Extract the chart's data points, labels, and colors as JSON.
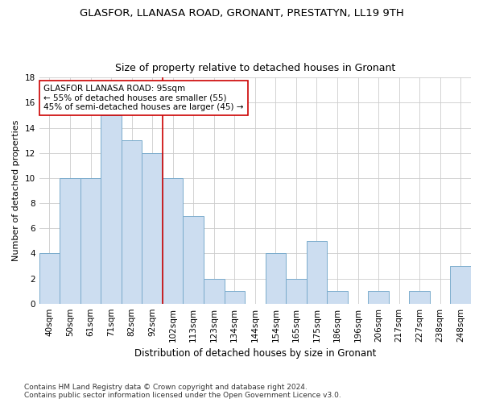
{
  "title": "GLASFOR, LLANASA ROAD, GRONANT, PRESTATYN, LL19 9TH",
  "subtitle": "Size of property relative to detached houses in Gronant",
  "xlabel": "Distribution of detached houses by size in Gronant",
  "ylabel": "Number of detached properties",
  "categories": [
    "40sqm",
    "50sqm",
    "61sqm",
    "71sqm",
    "82sqm",
    "92sqm",
    "102sqm",
    "113sqm",
    "123sqm",
    "134sqm",
    "144sqm",
    "154sqm",
    "165sqm",
    "175sqm",
    "186sqm",
    "196sqm",
    "206sqm",
    "217sqm",
    "227sqm",
    "238sqm",
    "248sqm"
  ],
  "values": [
    4,
    10,
    10,
    15,
    13,
    12,
    10,
    7,
    2,
    1,
    0,
    4,
    2,
    5,
    1,
    0,
    1,
    0,
    1,
    0,
    3
  ],
  "bar_color": "#ccddf0",
  "bar_edge_color": "#7aabcc",
  "vline_x": 5.5,
  "vline_color": "#cc0000",
  "annotation_text": "GLASFOR LLANASA ROAD: 95sqm\n← 55% of detached houses are smaller (55)\n45% of semi-detached houses are larger (45) →",
  "annotation_box_color": "#ffffff",
  "annotation_box_edge": "#cc0000",
  "ylim": [
    0,
    18
  ],
  "yticks": [
    0,
    2,
    4,
    6,
    8,
    10,
    12,
    14,
    16,
    18
  ],
  "bg_color": "#ffffff",
  "grid_color": "#cccccc",
  "footer": "Contains HM Land Registry data © Crown copyright and database right 2024.\nContains public sector information licensed under the Open Government Licence v3.0.",
  "title_fontsize": 9.5,
  "subtitle_fontsize": 9,
  "xlabel_fontsize": 8.5,
  "ylabel_fontsize": 8,
  "tick_fontsize": 7.5,
  "footer_fontsize": 6.5
}
